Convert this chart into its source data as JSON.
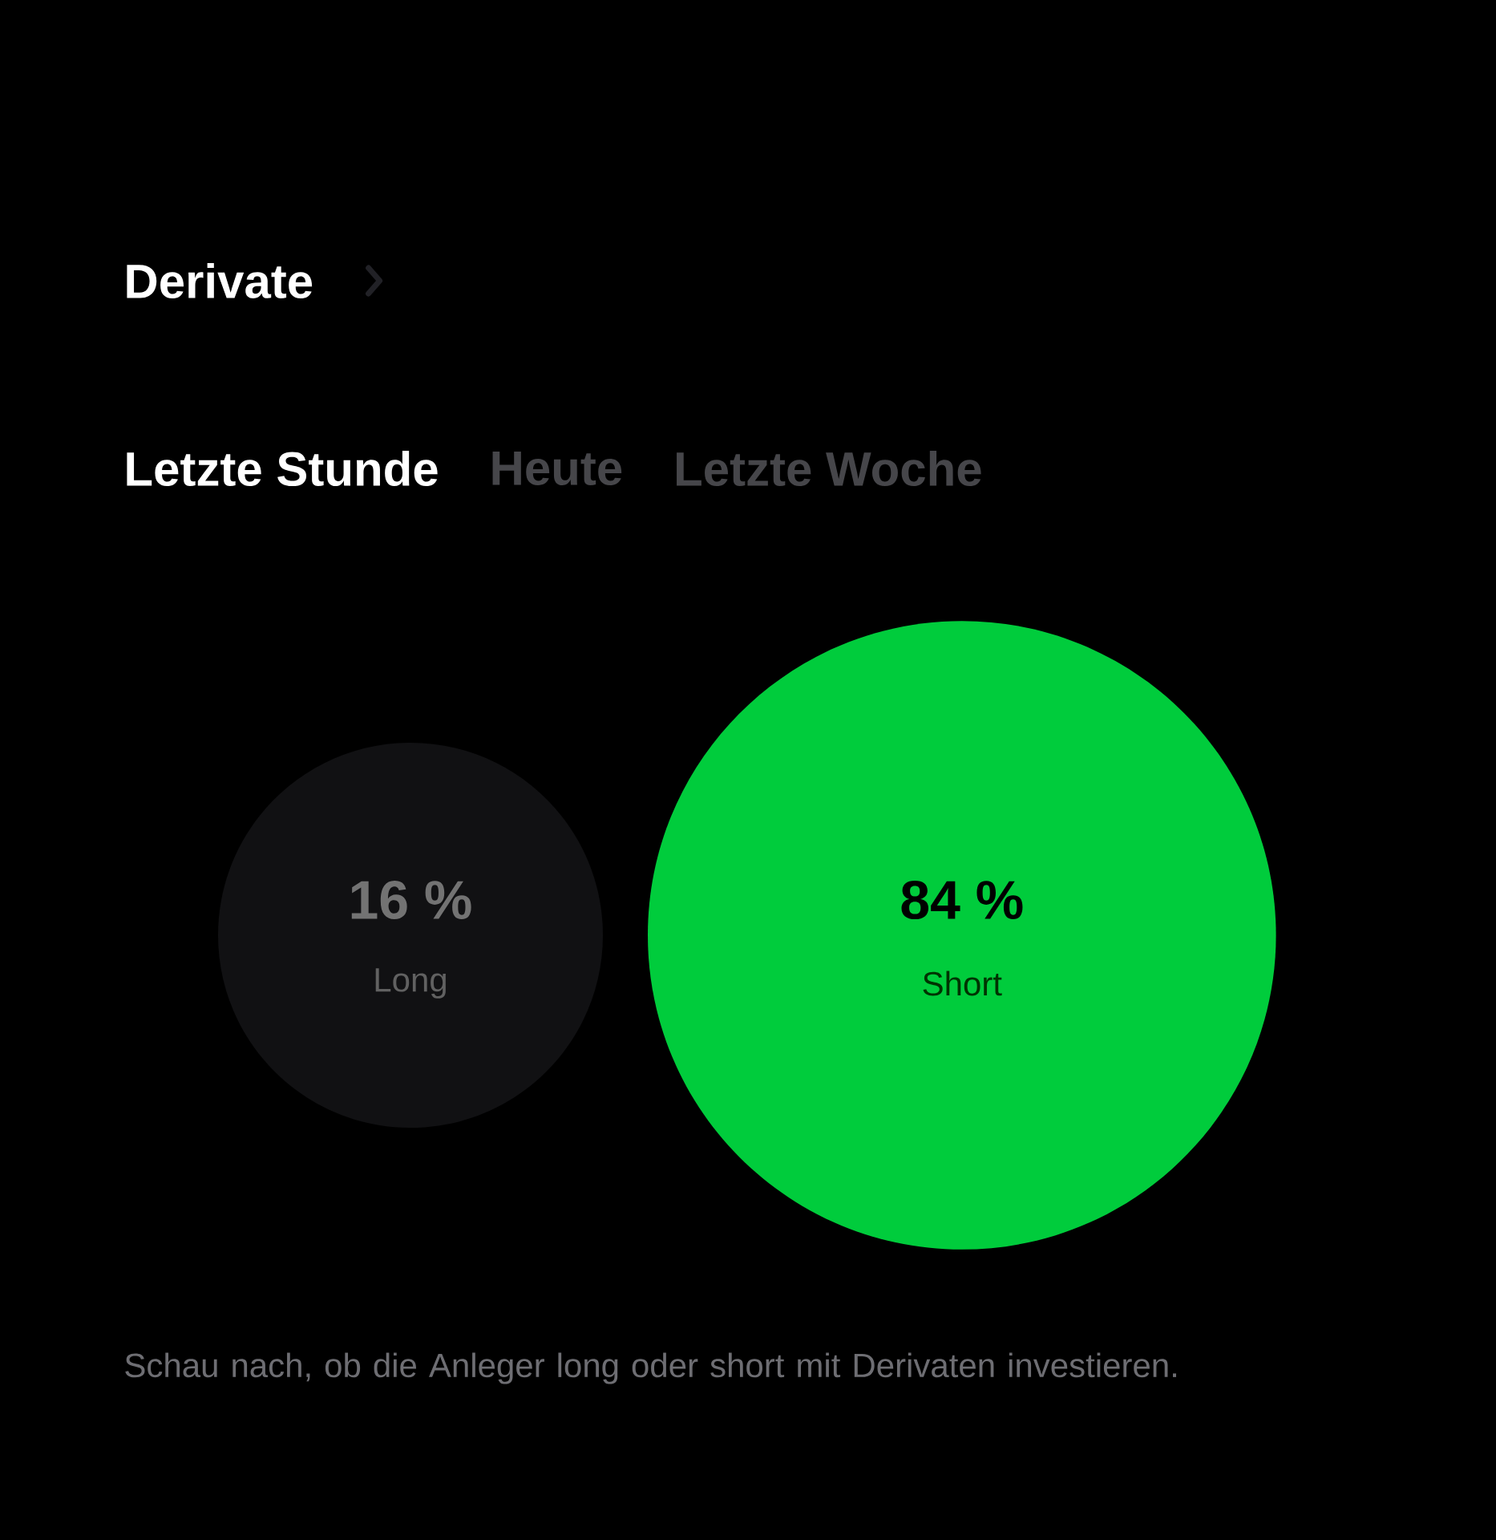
{
  "chart_data": {
    "type": "other",
    "title": "Derivate",
    "annotations": [
      "Letzte Stunde",
      "Heute",
      "Letzte Woche",
      "Schau nach, ob die Anleger long oder short mit Derivaten investieren."
    ],
    "categories": [
      "Long",
      "Short"
    ],
    "values": [
      16,
      84
    ],
    "value_labels": [
      "16 %",
      "84 %"
    ],
    "colors": [
      "#111113",
      "#00cc3c"
    ]
  }
}
